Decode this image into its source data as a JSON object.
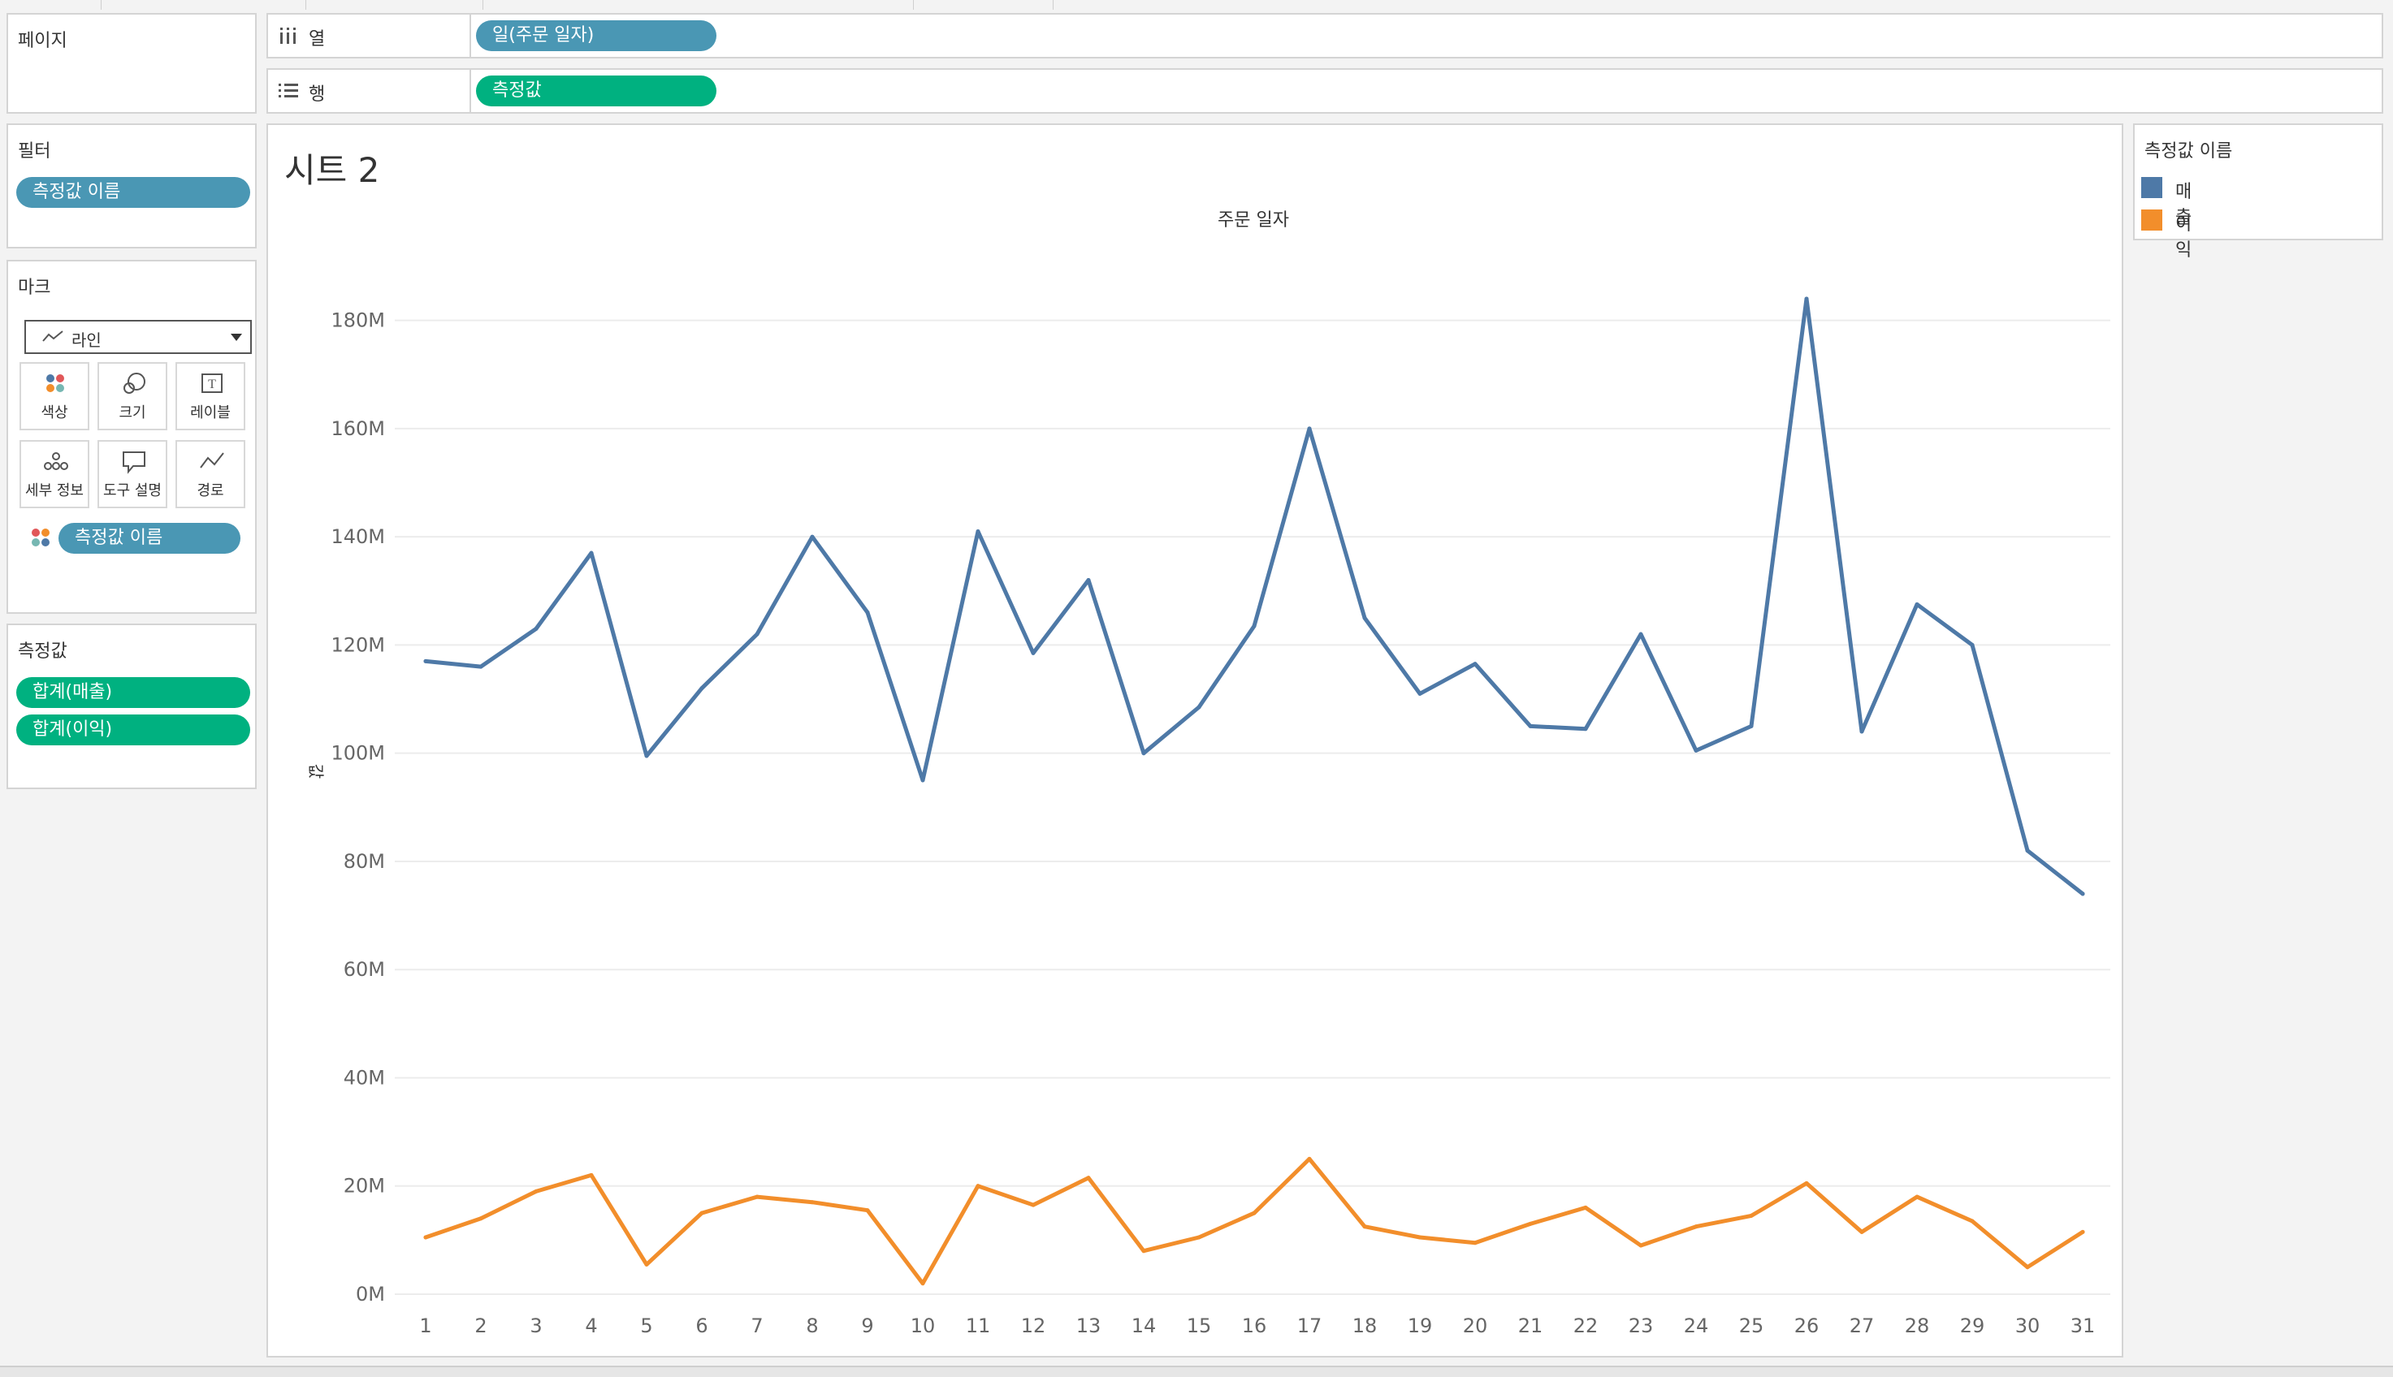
{
  "pages_card": {
    "title": "페이지"
  },
  "filters_card": {
    "title": "필터",
    "pill": "측정값 이름"
  },
  "marks_card": {
    "title": "마크",
    "mark_type": "라인",
    "buttons": [
      {
        "label": "색상",
        "icon": "color-icon"
      },
      {
        "label": "크기",
        "icon": "size-icon"
      },
      {
        "label": "레이블",
        "icon": "label-icon"
      },
      {
        "label": "세부 정보",
        "icon": "detail-icon"
      },
      {
        "label": "도구 설명",
        "icon": "tooltip-icon"
      },
      {
        "label": "경로",
        "icon": "path-icon"
      }
    ],
    "color_pill": "측정값 이름"
  },
  "measures_card": {
    "title": "측정값",
    "pills": [
      "합계(매출)",
      "합계(이익)"
    ]
  },
  "columns_shelf": {
    "label": "열",
    "pill": "일(주문 일자)"
  },
  "rows_shelf": {
    "label": "행",
    "pill": "측정값"
  },
  "sheet": {
    "title": "시트 2"
  },
  "legend": {
    "title": "측정값 이름",
    "items": [
      {
        "label": "매출",
        "color": "#4e79a7"
      },
      {
        "label": "이익",
        "color": "#f28e2b"
      }
    ]
  },
  "chart_data": {
    "type": "line",
    "xlabel": "주문 일자",
    "ylabel": "값",
    "categories": [
      "1",
      "2",
      "3",
      "4",
      "5",
      "6",
      "7",
      "8",
      "9",
      "10",
      "11",
      "12",
      "13",
      "14",
      "15",
      "16",
      "17",
      "18",
      "19",
      "20",
      "21",
      "22",
      "23",
      "24",
      "25",
      "26",
      "27",
      "28",
      "29",
      "30",
      "31"
    ],
    "ylim": [
      0,
      190000000
    ],
    "yticks": [
      0,
      20000000,
      40000000,
      60000000,
      80000000,
      100000000,
      120000000,
      140000000,
      160000000,
      180000000
    ],
    "ytick_labels": [
      "0M",
      "20M",
      "40M",
      "60M",
      "80M",
      "100M",
      "120M",
      "140M",
      "160M",
      "180M"
    ],
    "grid": true,
    "series": [
      {
        "name": "매출",
        "color": "#4e79a7",
        "values": [
          117000000,
          116000000,
          123000000,
          137000000,
          99500000,
          112000000,
          122000000,
          140000000,
          126000000,
          95000000,
          141000000,
          118500000,
          132000000,
          100000000,
          108500000,
          123500000,
          160000000,
          125000000,
          111000000,
          116500000,
          105000000,
          104500000,
          122000000,
          100500000,
          105000000,
          184000000,
          104000000,
          127500000,
          120000000,
          82000000,
          74000000
        ]
      },
      {
        "name": "이익",
        "color": "#f28e2b",
        "values": [
          10500000,
          14000000,
          19000000,
          22000000,
          5500000,
          15000000,
          18000000,
          17000000,
          15500000,
          2000000,
          20000000,
          16500000,
          21500000,
          8000000,
          10500000,
          15000000,
          25000000,
          12500000,
          10500000,
          9500000,
          13000000,
          16000000,
          9000000,
          12500000,
          14500000,
          20500000,
          11500000,
          18000000,
          13500000,
          5000000,
          11500000
        ]
      }
    ]
  }
}
